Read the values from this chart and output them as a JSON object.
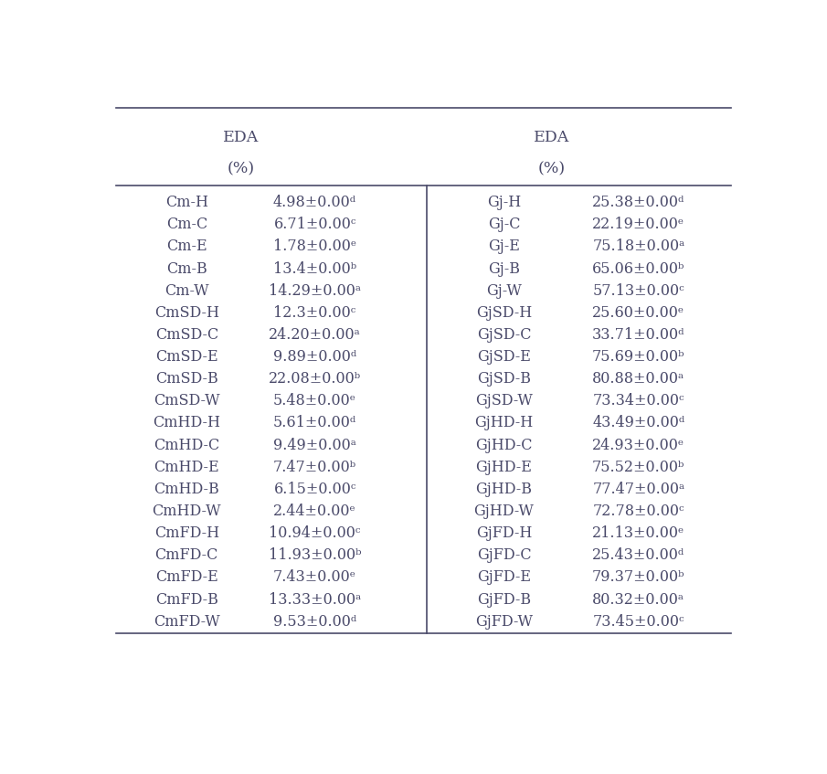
{
  "left_labels": [
    "Cm-H",
    "Cm-C",
    "Cm-E",
    "Cm-B",
    "Cm-W",
    "CmSD-H",
    "CmSD-C",
    "CmSD-E",
    "CmSD-B",
    "CmSD-W",
    "CmHD-H",
    "CmHD-C",
    "CmHD-E",
    "CmHD-B",
    "CmHD-W",
    "CmFD-H",
    "CmFD-C",
    "CmFD-E",
    "CmFD-B",
    "CmFD-W"
  ],
  "left_values": [
    "4.98±0.00ᵈ",
    "6.71±0.00ᶜ",
    "1.78±0.00ᵉ",
    "13.4±0.00ᵇ",
    "14.29±0.00ᵃ",
    "12.3±0.00ᶜ",
    "24.20±0.00ᵃ",
    "9.89±0.00ᵈ",
    "22.08±0.00ᵇ",
    "5.48±0.00ᵉ",
    "5.61±0.00ᵈ",
    "9.49±0.00ᵃ",
    "7.47±0.00ᵇ",
    "6.15±0.00ᶜ",
    "2.44±0.00ᵉ",
    "10.94±0.00ᶜ",
    "11.93±0.00ᵇ",
    "7.43±0.00ᵉ",
    "13.33±0.00ᵃ",
    "9.53±0.00ᵈ"
  ],
  "right_labels": [
    "Gj-H",
    "Gj-C",
    "Gj-E",
    "Gj-B",
    "Gj-W",
    "GjSD-H",
    "GjSD-C",
    "GjSD-E",
    "GjSD-B",
    "GjSD-W",
    "GjHD-H",
    "GjHD-C",
    "GjHD-E",
    "GjHD-B",
    "GjHD-W",
    "GjFD-H",
    "GjFD-C",
    "GjFD-E",
    "GjFD-B",
    "GjFD-W"
  ],
  "right_values": [
    "25.38±0.00ᵈ",
    "22.19±0.00ᵉ",
    "75.18±0.00ᵃ",
    "65.06±0.00ᵇ",
    "57.13±0.00ᶜ",
    "25.60±0.00ᵉ",
    "33.71±0.00ᵈ",
    "75.69±0.00ᵇ",
    "80.88±0.00ᵃ",
    "73.34±0.00ᶜ",
    "43.49±0.00ᵈ",
    "24.93±0.00ᵉ",
    "75.52±0.00ᵇ",
    "77.47±0.00ᵃ",
    "72.78±0.00ᶜ",
    "21.13±0.00ᵉ",
    "25.43±0.00ᵈ",
    "79.37±0.00ᵇ",
    "80.32±0.00ᵃ",
    "73.45±0.00ᶜ"
  ],
  "bg_color": "#ffffff",
  "text_color": "#4a4a6a",
  "line_color": "#4a4a6a",
  "font_size": 11.5,
  "header_font_size": 12.5
}
